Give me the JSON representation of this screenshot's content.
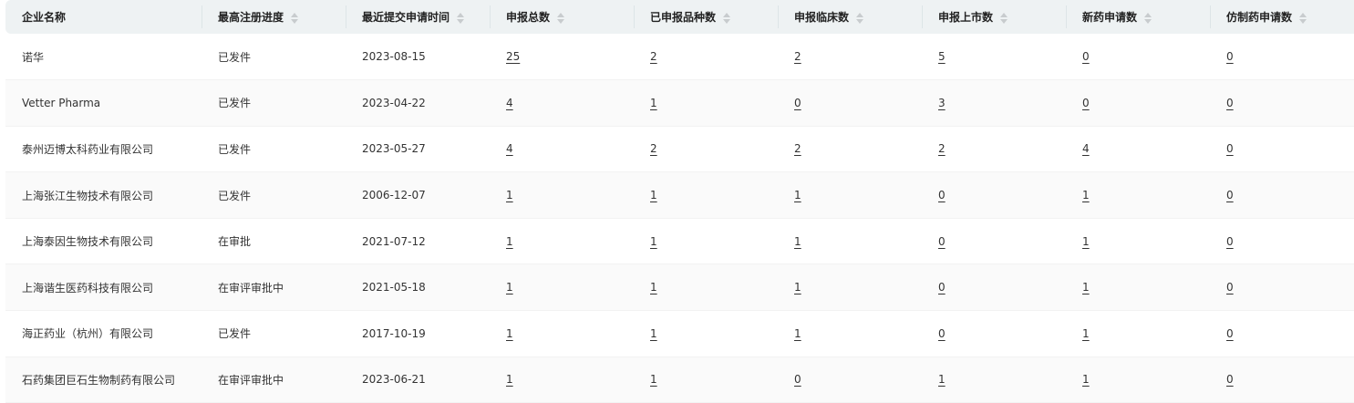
{
  "columns": [
    "企业名称",
    "最高注册进度",
    "最近提交申请时间",
    "申报总数",
    "已申报品种数",
    "申报临床数",
    "申报上市数",
    "新药申请数",
    "仿制药申请数"
  ],
  "rows": [
    [
      "诺华",
      "已发件",
      "2023-08-15",
      "25",
      "2",
      "2",
      "5",
      "0",
      "0"
    ],
    [
      "Vetter Pharma",
      "已发件",
      "2023-04-22",
      "4",
      "1",
      "0",
      "3",
      "0",
      "0"
    ],
    [
      "泰州迈博太科药业有限公司",
      "已发件",
      "2023-05-27",
      "4",
      "2",
      "2",
      "2",
      "4",
      "0"
    ],
    [
      "上海张江生物技术有限公司",
      "已发件",
      "2006-12-07",
      "1",
      "1",
      "1",
      "0",
      "1",
      "0"
    ],
    [
      "上海泰因生物技术有限公司",
      "在审批",
      "2021-07-12",
      "1",
      "1",
      "1",
      "0",
      "1",
      "0"
    ],
    [
      "上海谐生医药科技有限公司",
      "在审评审批中",
      "2021-05-18",
      "1",
      "1",
      "1",
      "0",
      "1",
      "0"
    ],
    [
      "海正药业（杭州）有限公司",
      "已发件",
      "2017-10-19",
      "1",
      "1",
      "1",
      "0",
      "1",
      "0"
    ],
    [
      "石药集团巨石生物制药有限公司",
      "在审评审批中",
      "2023-06-21",
      "1",
      "1",
      "0",
      "1",
      "1",
      "0"
    ]
  ]
}
